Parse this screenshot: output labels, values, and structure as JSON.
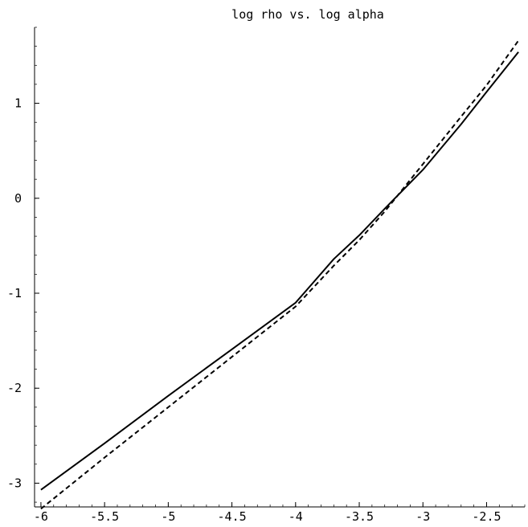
{
  "chart_data": {
    "type": "line",
    "title": "log rho vs. log alpha",
    "xlabel": "",
    "ylabel": "",
    "xlim": [
      -6.05,
      -2.2
    ],
    "ylim": [
      -3.25,
      1.8
    ],
    "x_ticks": [
      {
        "value": -6,
        "label": "-6"
      },
      {
        "value": -5.5,
        "label": "-5.5"
      },
      {
        "value": -5,
        "label": "-5"
      },
      {
        "value": -4.5,
        "label": "-4.5"
      },
      {
        "value": -4,
        "label": "-4"
      },
      {
        "value": -3.5,
        "label": "-3.5"
      },
      {
        "value": -3,
        "label": "-3"
      },
      {
        "value": -2.5,
        "label": "-2.5"
      }
    ],
    "y_ticks": [
      {
        "value": -3,
        "label": "-3"
      },
      {
        "value": -2,
        "label": "-2"
      },
      {
        "value": -1,
        "label": "-1"
      },
      {
        "value": 0,
        "label": "0"
      },
      {
        "value": 1,
        "label": "1"
      }
    ],
    "x_minor_step": 0.1,
    "y_minor_step": 0.2,
    "grid": false,
    "legend": "none",
    "series": [
      {
        "style": "solid",
        "color": "#000000",
        "points": [
          [
            -6.0,
            -3.07
          ],
          [
            -5.5,
            -2.58
          ],
          [
            -5.0,
            -2.08
          ],
          [
            -4.5,
            -1.59
          ],
          [
            -4.0,
            -1.1
          ],
          [
            -3.7,
            -0.64
          ],
          [
            -3.5,
            -0.39
          ],
          [
            -3.3,
            -0.11
          ],
          [
            -3.0,
            0.3
          ],
          [
            -2.7,
            0.78
          ],
          [
            -2.5,
            1.12
          ],
          [
            -2.25,
            1.54
          ]
        ]
      },
      {
        "style": "dashed",
        "color": "#000000",
        "points": [
          [
            -6.0,
            -3.27
          ],
          [
            -5.5,
            -2.73
          ],
          [
            -5.0,
            -2.2
          ],
          [
            -4.5,
            -1.67
          ],
          [
            -4.0,
            -1.14
          ],
          [
            -3.7,
            -0.71
          ],
          [
            -3.5,
            -0.44
          ],
          [
            -3.3,
            -0.14
          ],
          [
            -3.0,
            0.36
          ],
          [
            -2.7,
            0.86
          ],
          [
            -2.5,
            1.19
          ],
          [
            -2.25,
            1.66
          ]
        ]
      }
    ]
  }
}
